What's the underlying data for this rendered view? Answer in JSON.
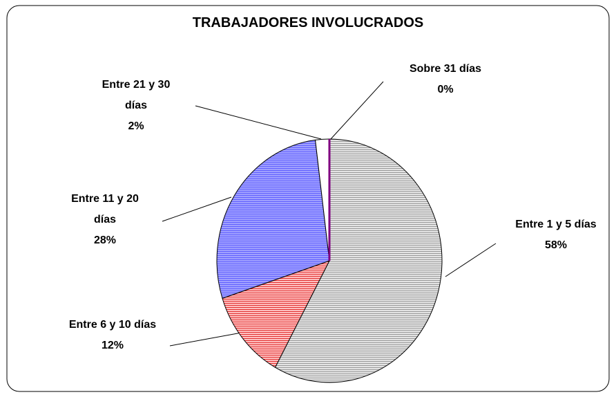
{
  "chart_data": {
    "type": "pie",
    "title": "TRABAJADORES INVOLUCRADOS",
    "categories": [
      "Entre 1 y 5 días",
      "Entre 6 y 10 días",
      "Entre 11 y 20 días",
      "Entre 21 y 30 días",
      "Sobre 31 días"
    ],
    "values": [
      58,
      12,
      28,
      2,
      0
    ],
    "value_labels": [
      "58%",
      "12%",
      "28%",
      "2%",
      "0%"
    ],
    "colors": [
      "#c0c0c0",
      "#ff8080",
      "#8080ff",
      "#ffffff",
      "#800080"
    ]
  }
}
